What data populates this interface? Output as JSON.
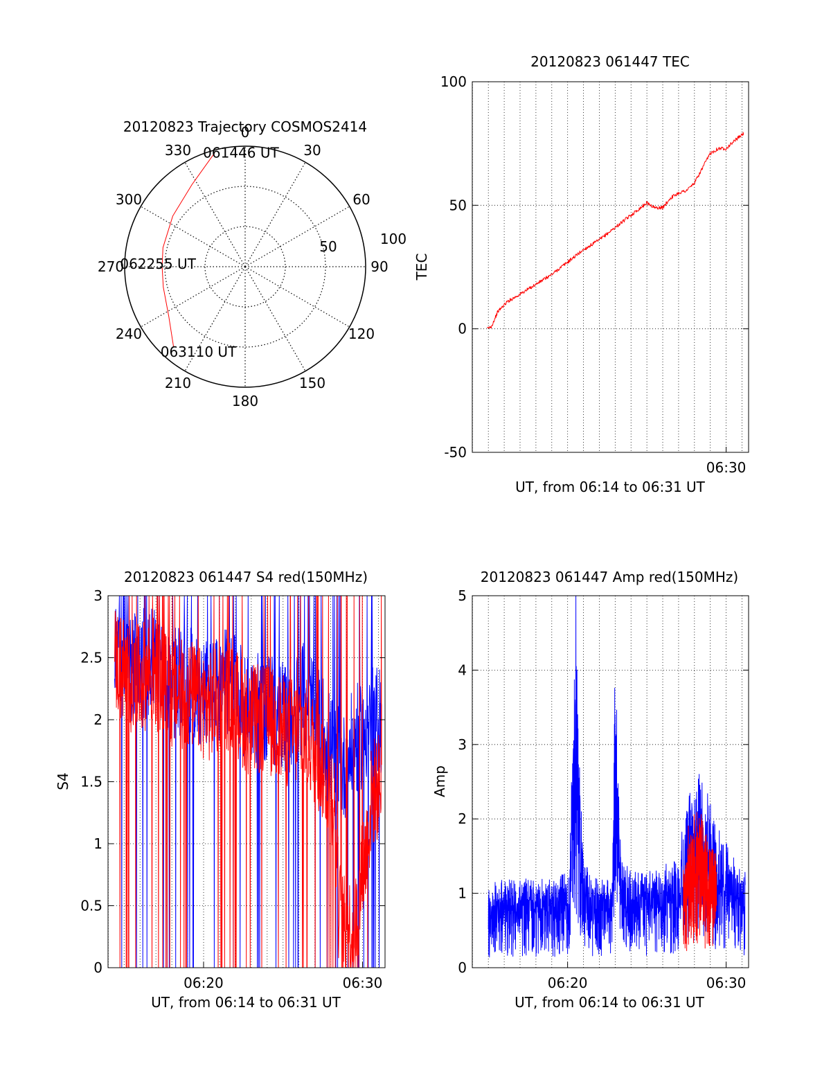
{
  "chart_data": [
    {
      "type": "polar",
      "title": "20120823 Trajectory COSMOS2414",
      "azimuth_labels": [
        "0",
        "30",
        "60",
        "90",
        "120",
        "150",
        "180",
        "210",
        "240",
        "270",
        "300",
        "330"
      ],
      "radial_labels": [
        "50",
        "100"
      ],
      "grid": true,
      "series": [
        {
          "color": "#ff0000",
          "points": [
            {
              "az": 345,
              "zen": 88
            },
            {
              "az": 327,
              "zen": 73
            },
            {
              "az": 305,
              "zen": 66
            },
            {
              "az": 283,
              "zen": 63
            },
            {
              "az": 270,
              "zen": 62
            },
            {
              "az": 256,
              "zen": 63
            },
            {
              "az": 237,
              "zen": 68
            },
            {
              "az": 222,
              "zen": 80
            }
          ]
        }
      ],
      "annotations": [
        {
          "text": "061446 UT",
          "az": 345,
          "zen": 88
        },
        {
          "text": "062255 UT",
          "az": 270,
          "zen": 62
        },
        {
          "text": "063110 UT",
          "az": 222,
          "zen": 80
        }
      ]
    },
    {
      "type": "line",
      "title": "20120823 061447 TEC",
      "xlabel": "UT, from 06:14 to 06:31 UT",
      "ylabel": "TEC",
      "xlim": [
        6.2331,
        6.5236
      ],
      "ylim": [
        -50,
        100
      ],
      "yticks": [
        -50,
        0,
        50,
        100
      ],
      "xticks": [
        {
          "value": 6.5,
          "label": "06:30"
        }
      ],
      "grid": true,
      "series": [
        {
          "color": "#ff0000",
          "x": [
            6.2486,
            6.2533,
            6.26,
            6.27,
            6.2833,
            6.3,
            6.3167,
            6.3333,
            6.35,
            6.3667,
            6.3833,
            6.4,
            6.4167,
            6.425,
            6.4333,
            6.4417,
            6.45,
            6.4583,
            6.4667,
            6.475,
            6.4833,
            6.4917,
            6.5,
            6.5083,
            6.5183
          ],
          "y": [
            0,
            1,
            7,
            11,
            14,
            18,
            22,
            27,
            32,
            36,
            41,
            46,
            51,
            49,
            49,
            53,
            55,
            56,
            59,
            65,
            71,
            73,
            73,
            76,
            79
          ]
        }
      ]
    },
    {
      "type": "line",
      "title": "20120823 061447 S4 red(150MHz)",
      "xlabel": "UT, from 06:14 to 06:31 UT",
      "ylabel": "S4",
      "xlim": [
        6.2331,
        6.5236
      ],
      "ylim": [
        0,
        3
      ],
      "yticks": [
        0,
        0.5,
        1,
        1.5,
        2,
        2.5,
        3
      ],
      "xticks": [
        {
          "value": 6.3333,
          "label": "06:20"
        },
        {
          "value": 6.5,
          "label": "06:30"
        }
      ],
      "grid": true,
      "series": [
        {
          "color": "#0000ff",
          "x": [
            6.24,
            6.26,
            6.28,
            6.3,
            6.32,
            6.34,
            6.36,
            6.38,
            6.4,
            6.42,
            6.44,
            6.46,
            6.47,
            6.48,
            6.49,
            6.5,
            6.51,
            6.52
          ],
          "y": [
            2.6,
            2.4,
            2.5,
            2.3,
            2.3,
            2.2,
            2.3,
            2.1,
            2.1,
            2.0,
            2.2,
            1.9,
            1.7,
            1.6,
            1.8,
            1.9,
            2.0,
            2.0
          ]
        },
        {
          "color": "#ff0000",
          "x": [
            6.24,
            6.26,
            6.28,
            6.3,
            6.32,
            6.34,
            6.36,
            6.38,
            6.4,
            6.42,
            6.44,
            6.46,
            6.47,
            6.475,
            6.48,
            6.485,
            6.49,
            6.495,
            6.5,
            6.505,
            6.51,
            6.52
          ],
          "y": [
            2.5,
            2.3,
            2.4,
            2.2,
            2.2,
            2.1,
            2.2,
            2.0,
            2.0,
            1.9,
            1.9,
            1.6,
            1.4,
            0.5,
            0.3,
            0.3,
            0.3,
            0.4,
            0.8,
            1.0,
            1.4,
            1.5
          ]
        }
      ]
    },
    {
      "type": "line",
      "title": "20120823 061447 Amp red(150MHz)",
      "xlabel": "UT, from 06:14 to 06:31 UT",
      "ylabel": "Amp",
      "xlim": [
        6.2331,
        6.5236
      ],
      "ylim": [
        0,
        5
      ],
      "yticks": [
        0,
        1,
        2,
        3,
        4,
        5
      ],
      "xticks": [
        {
          "value": 6.3333,
          "label": "06:20"
        },
        {
          "value": 6.5,
          "label": "06:30"
        }
      ],
      "grid": true,
      "series": [
        {
          "color": "#0000ff",
          "x": [
            6.25,
            6.26,
            6.28,
            6.3,
            6.32,
            6.335,
            6.342,
            6.345,
            6.35,
            6.36,
            6.38,
            6.3833,
            6.39,
            6.4,
            6.42,
            6.44,
            6.45,
            6.46,
            6.47,
            6.48,
            6.49,
            6.5,
            6.51,
            6.52
          ],
          "y": [
            0.9,
            1.0,
            1.0,
            1.0,
            1.0,
            1.1,
            4.3,
            2.5,
            1.2,
            1.0,
            1.0,
            3.5,
            1.2,
            1.1,
            1.1,
            1.2,
            1.3,
            2.0,
            2.2,
            2.0,
            1.6,
            1.4,
            1.2,
            1.1
          ]
        },
        {
          "color": "#ff0000",
          "x": [
            6.455,
            6.46,
            6.465,
            6.47,
            6.475,
            6.48,
            6.485,
            6.49
          ],
          "y": [
            1.2,
            1.6,
            1.7,
            1.8,
            1.7,
            1.5,
            1.4,
            1.3
          ]
        }
      ]
    }
  ]
}
